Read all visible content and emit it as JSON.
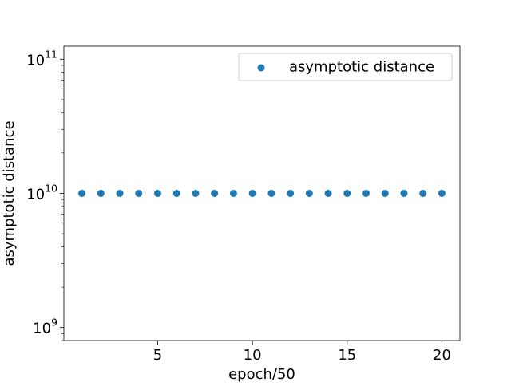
{
  "chart_data": {
    "type": "scatter",
    "title": "",
    "xlabel": "epoch/50",
    "ylabel": "asymptotic distance",
    "xscale": "linear",
    "yscale": "log",
    "xlim": [
      0.05,
      20.95
    ],
    "ylim": [
      800000000,
      125000000000
    ],
    "xticks": [
      5,
      10,
      15,
      20
    ],
    "xtick_labels": [
      "5",
      "10",
      "15",
      "20"
    ],
    "yticks": [
      1000000000,
      10000000000,
      100000000000
    ],
    "ytick_labels": [
      {
        "base": "10",
        "exp": "9"
      },
      {
        "base": "10",
        "exp": "10"
      },
      {
        "base": "10",
        "exp": "11"
      }
    ],
    "grid": false,
    "legend_position": "top-right",
    "series": [
      {
        "name": "asymptotic distance",
        "color": "#1f77b4",
        "marker": "circle",
        "x": [
          1,
          2,
          3,
          4,
          5,
          6,
          7,
          8,
          9,
          10,
          11,
          12,
          13,
          14,
          15,
          16,
          17,
          18,
          19,
          20
        ],
        "y": [
          10000000000,
          10000000000,
          10000000000,
          10000000000,
          10000000000,
          10000000000,
          10000000000,
          10000000000,
          10000000000,
          10000000000,
          10000000000,
          10000000000,
          10000000000,
          10000000000,
          10000000000,
          10000000000,
          10000000000,
          10000000000,
          10000000000,
          10000000000
        ]
      }
    ]
  }
}
